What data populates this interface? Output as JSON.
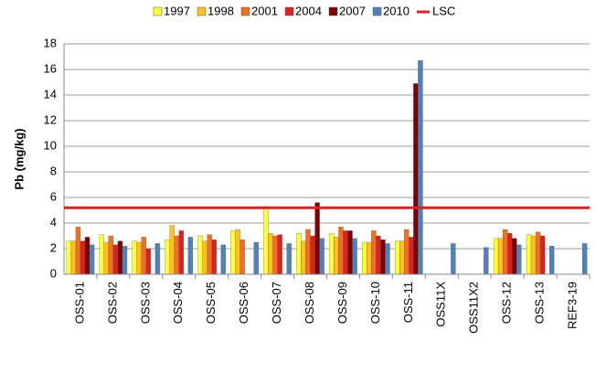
{
  "chart_data": {
    "type": "bar",
    "y_label": "Pb (mg/kg)",
    "categories": [
      "OSS-01",
      "OSS-02",
      "OSS-03",
      "OSS-04",
      "OSS-05",
      "OSS-06",
      "OSS-07",
      "OSS-08",
      "OSS-09",
      "OSS-10",
      "OSS-11",
      "OSS11X",
      "OSS11X2",
      "OSS-12",
      "OSS-13",
      "REF3-19"
    ],
    "series": [
      {
        "name": "1997",
        "color": "#ffff33",
        "values": [
          2.6,
          3.1,
          2.6,
          2.7,
          3.0,
          3.4,
          5.3,
          3.2,
          3.2,
          2.5,
          2.6,
          null,
          null,
          2.8,
          3.1,
          null
        ]
      },
      {
        "name": "1998",
        "color": "#ffc020",
        "values": [
          2.6,
          2.5,
          2.5,
          3.8,
          2.6,
          3.5,
          3.2,
          2.6,
          2.9,
          2.5,
          2.6,
          null,
          null,
          2.8,
          3.0,
          null
        ]
      },
      {
        "name": "2001",
        "color": "#f07020",
        "values": [
          3.7,
          3.0,
          2.9,
          3.0,
          3.1,
          2.7,
          3.0,
          3.5,
          3.7,
          3.4,
          3.5,
          null,
          null,
          3.5,
          3.3,
          null
        ]
      },
      {
        "name": "2004",
        "color": "#e02020",
        "values": [
          2.6,
          2.3,
          2.0,
          3.4,
          2.7,
          null,
          3.1,
          3.0,
          3.4,
          3.0,
          2.9,
          null,
          null,
          3.2,
          3.0,
          null
        ]
      },
      {
        "name": "2007",
        "color": "#800000",
        "values": [
          2.9,
          2.6,
          null,
          null,
          null,
          null,
          null,
          5.6,
          3.4,
          2.7,
          14.9,
          null,
          null,
          2.8,
          null,
          null
        ]
      },
      {
        "name": "2010",
        "color": "#4f81bd",
        "values": [
          2.3,
          2.2,
          2.4,
          2.9,
          2.3,
          2.5,
          2.4,
          2.8,
          2.8,
          2.4,
          16.7,
          2.4,
          2.1,
          2.3,
          2.2,
          2.4
        ]
      }
    ],
    "reference_lines": [
      {
        "name": "LSC",
        "color": "#e02020",
        "value": 5.2
      }
    ],
    "ylim": [
      0,
      18
    ],
    "yticks": [
      0,
      2,
      4,
      6,
      8,
      10,
      12,
      14,
      16,
      18
    ],
    "grid": true
  }
}
